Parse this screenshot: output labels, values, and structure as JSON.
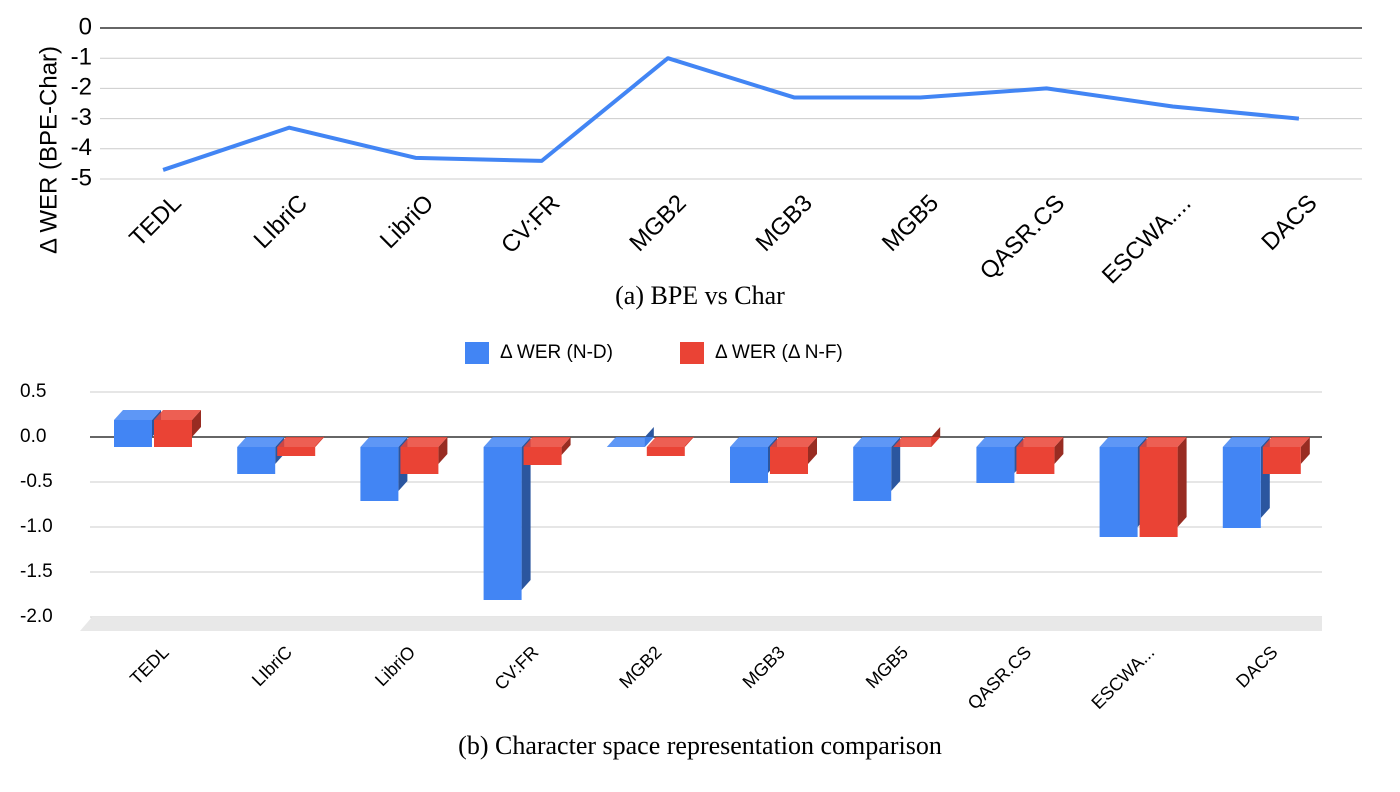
{
  "chart_data": [
    {
      "type": "line",
      "caption": "(a) BPE vs Char",
      "y_label": "Δ WER (BPE-Char)",
      "categories": [
        "TEDL",
        "LIbriC",
        "LibriO",
        "CV:FR",
        "MGB2",
        "MGB3",
        "MGB5",
        "QASR.CS",
        "ESCWA....",
        "DACS"
      ],
      "series": [
        {
          "name": "Δ WER (BPE-Char)",
          "color": "#4285f4",
          "values": [
            -4.7,
            -3.3,
            -4.3,
            -4.4,
            -1,
            -2.3,
            -2.3,
            -2,
            -2.6,
            -3
          ]
        }
      ],
      "ylim": [
        -5,
        0
      ],
      "yticks": [
        0,
        -1,
        -2,
        -3,
        -4,
        -5
      ],
      "grid": true
    },
    {
      "type": "bar3d",
      "caption": "(b) Character space representation comparison",
      "categories": [
        "TEDL",
        "LIbriC",
        "LibriO",
        "CV:FR",
        "MGB2",
        "MGB3",
        "MGB5",
        "QASR.CS",
        "ESCWA...",
        "DACS"
      ],
      "series": [
        {
          "name": "Δ WER (N-D)",
          "color": "#4285f4",
          "values": [
            0.3,
            -0.3,
            -0.6,
            -1.7,
            0,
            -0.4,
            -0.6,
            -0.4,
            -1.0,
            -0.9
          ]
        },
        {
          "name": "Δ WER (Δ N-F)",
          "color": "#ea4335",
          "values": [
            0.3,
            -0.1,
            -0.3,
            -0.2,
            -0.1,
            -0.3,
            0,
            -0.3,
            -1.0,
            -0.3
          ]
        }
      ],
      "ylim": [
        -2,
        0.5
      ],
      "yticks": [
        0.5,
        {
          "value": 0,
          "label": "0.0"
        },
        -0.5,
        {
          "value": -1,
          "label": "-1.0"
        },
        -1.5,
        {
          "value": -2,
          "label": "-2.0"
        }
      ],
      "grid": true,
      "legend": "top"
    }
  ]
}
